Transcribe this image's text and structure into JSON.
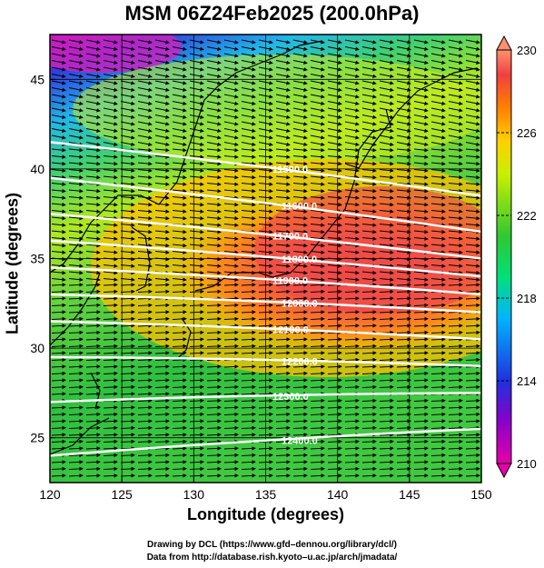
{
  "title": "MSM 06Z24Feb2025 (200.0hPa)",
  "credits": {
    "line1": "Drawing by DCL (https://www.gfd–dennou.org/library/dcl/)",
    "line2": "Data from http://database.rish.kyoto–u.ac.jp/arch/jmadata/"
  },
  "chart_data": {
    "type": "heatmap",
    "xlabel": "Longitude (degrees)",
    "ylabel": "Latitude  (degrees)",
    "xlim": [
      120,
      150
    ],
    "ylim": [
      22.5,
      47.5
    ],
    "xticks": [
      120,
      125,
      130,
      135,
      140,
      145,
      150
    ],
    "yticks": [
      25,
      30,
      35,
      40,
      45
    ],
    "colorbar": {
      "range": [
        210,
        230
      ],
      "ticks": [
        210,
        214,
        218,
        222,
        226,
        230
      ],
      "colors": [
        "#e600a8",
        "#8a00c8",
        "#2030e0",
        "#00b4ff",
        "#00e07a",
        "#30c830",
        "#c8f000",
        "#ffd000",
        "#ff8000",
        "#f04040",
        "#ff9070"
      ]
    },
    "contours": [
      {
        "label": "11500.0",
        "lat_at_120": 41.5,
        "lat_at_150": 38.5
      },
      {
        "label": "11600.0",
        "lat_at_120": 39.5,
        "lat_at_150": 36.5
      },
      {
        "label": "11700.0",
        "lat_at_120": 37.5,
        "lat_at_150": 35.0
      },
      {
        "label": "11800.0",
        "lat_at_120": 36.0,
        "lat_at_150": 34.0
      },
      {
        "label": "11900.0",
        "lat_at_120": 34.5,
        "lat_at_150": 33.0
      },
      {
        "label": "12000.0",
        "lat_at_120": 33.0,
        "lat_at_150": 32.0
      },
      {
        "label": "12100.0",
        "lat_at_120": 31.5,
        "lat_at_150": 30.5
      },
      {
        "label": "12200.0",
        "lat_at_120": 29.5,
        "lat_at_150": 29.0
      },
      {
        "label": "12300.0",
        "lat_at_120": 27.0,
        "lat_at_150": 27.5
      },
      {
        "label": "12400.0",
        "lat_at_120": 24.0,
        "lat_at_150": 25.5
      }
    ],
    "field_description": "Temperature field, peak ~229 over central Japan, minimum ~212 at top-left"
  }
}
